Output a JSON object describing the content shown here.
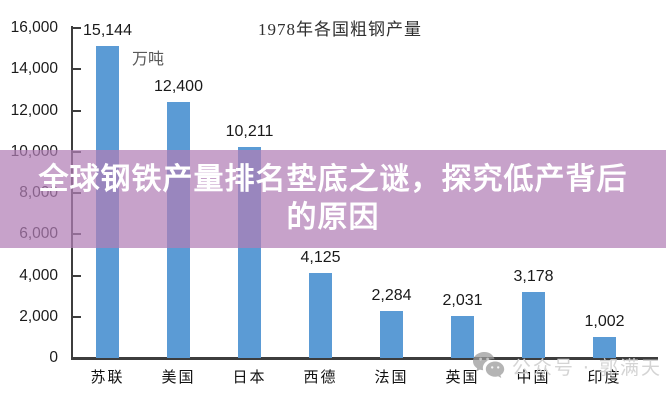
{
  "chart_data": {
    "type": "bar",
    "title": "1978年各国粗钢产量",
    "unit": "万吨",
    "categories": [
      "苏联",
      "美国",
      "日本",
      "西德",
      "法国",
      "英国",
      "中国",
      "印度"
    ],
    "values": [
      15144,
      12400,
      10211,
      4125,
      2284,
      2031,
      3178,
      1002
    ],
    "value_labels": [
      "15,144",
      "12,400",
      "10,211",
      "4,125",
      "2,284",
      "2,031",
      "3,178",
      "1,002"
    ],
    "y_ticks": [
      "0",
      "2,000",
      "4,000",
      "6,000",
      "8,000",
      "10,000",
      "12,000",
      "14,000",
      "16,000"
    ],
    "y_tick_step": 2000,
    "ylim": [
      0,
      16000
    ],
    "bar_color": "#5B9BD5",
    "grid": false,
    "legend": false,
    "xlabel": "",
    "ylabel": ""
  },
  "overlay_banner": {
    "line1": "全球钢铁产量排名垫底之谜，探究低产背后",
    "line2": "的原因",
    "background": "rgba(177,126,182,0.72)",
    "text_color": "#FFFFFF"
  },
  "watermark": {
    "icon": "wechat-icon",
    "text": "公众号 · 郭满天"
  }
}
